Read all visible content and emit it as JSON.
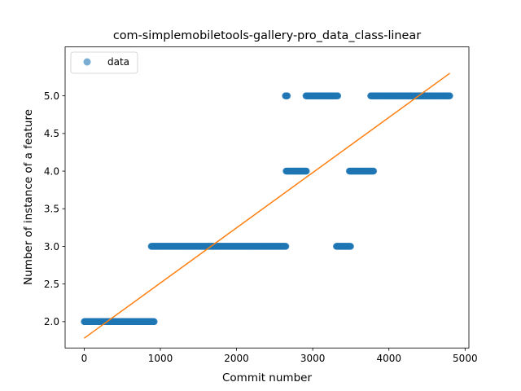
{
  "chart_data": {
    "type": "scatter",
    "title": "com-simplemobiletools-gallery-pro_data_class-linear",
    "xlabel": "Commit number",
    "ylabel": "Number of instance of a feature",
    "xlim": [
      -250,
      5050
    ],
    "ylim": [
      1.65,
      5.65
    ],
    "x_ticks": [
      0,
      1000,
      2000,
      3000,
      4000,
      5000
    ],
    "y_ticks": [
      2.0,
      2.5,
      3.0,
      3.5,
      4.0,
      4.5,
      5.0
    ],
    "legend": {
      "placement": "top-left",
      "entries": [
        "data"
      ]
    },
    "grid": false,
    "series": [
      {
        "name": "data",
        "kind": "scatter",
        "color": "#1f77b4",
        "segments": [
          {
            "x_start": 0,
            "x_end": 920,
            "y": 2
          },
          {
            "x_start": 880,
            "x_end": 2650,
            "y": 3
          },
          {
            "x_start": 2640,
            "x_end": 2670,
            "y": 5
          },
          {
            "x_start": 2650,
            "x_end": 2920,
            "y": 4
          },
          {
            "x_start": 2910,
            "x_end": 3330,
            "y": 5
          },
          {
            "x_start": 3310,
            "x_end": 3500,
            "y": 3
          },
          {
            "x_start": 3480,
            "x_end": 3800,
            "y": 4
          },
          {
            "x_start": 3760,
            "x_end": 4800,
            "y": 5
          }
        ]
      },
      {
        "kind": "line",
        "color": "#ff7f0e",
        "x": [
          0,
          4800
        ],
        "y": [
          1.78,
          5.3
        ]
      }
    ]
  }
}
